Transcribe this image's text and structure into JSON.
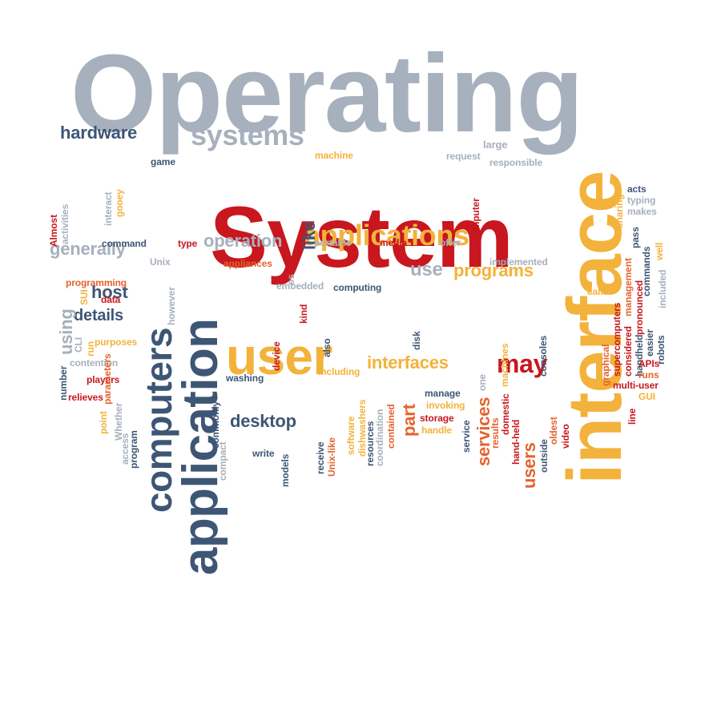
{
  "palette": {
    "gray": "#a7b0bd",
    "navy": "#3e5675",
    "yellow": "#f3b23b",
    "orange": "#e5622e",
    "red": "#c8171e"
  },
  "words": [
    {
      "text": "Operating",
      "color": "gray"
    },
    {
      "text": "System",
      "color": "red"
    },
    {
      "text": "interface",
      "color": "yellow"
    },
    {
      "text": "application",
      "color": "navy"
    },
    {
      "text": "user",
      "color": "yellow"
    },
    {
      "text": "computers",
      "color": "navy"
    },
    {
      "text": "applications",
      "color": "yellow"
    },
    {
      "text": "systems",
      "color": "gray"
    },
    {
      "text": "hardware",
      "color": "navy"
    },
    {
      "text": "may",
      "color": "red"
    },
    {
      "text": "interfaces",
      "color": "yellow"
    },
    {
      "text": "operation",
      "color": "gray"
    },
    {
      "text": "programs",
      "color": "yellow"
    },
    {
      "text": "desktop",
      "color": "navy"
    },
    {
      "text": "generally",
      "color": "gray"
    },
    {
      "text": "services",
      "color": "orange"
    },
    {
      "text": "users",
      "color": "orange"
    },
    {
      "text": "use",
      "color": "gray"
    },
    {
      "text": "like",
      "color": "navy"
    },
    {
      "text": "host",
      "color": "navy"
    },
    {
      "text": "details",
      "color": "navy"
    },
    {
      "text": "using",
      "color": "gray"
    },
    {
      "text": "part",
      "color": "orange"
    },
    {
      "text": "game",
      "color": "navy"
    },
    {
      "text": "machine",
      "color": "yellow"
    },
    {
      "text": "request",
      "color": "gray"
    },
    {
      "text": "large",
      "color": "gray"
    },
    {
      "text": "responsible",
      "color": "gray"
    },
    {
      "text": "acts",
      "color": "navy"
    },
    {
      "text": "typing",
      "color": "gray"
    },
    {
      "text": "makes",
      "color": "gray"
    },
    {
      "text": "sharing",
      "color": "yellow"
    },
    {
      "text": "pass",
      "color": "navy"
    },
    {
      "text": "well",
      "color": "yellow"
    },
    {
      "text": "commands",
      "color": "navy"
    },
    {
      "text": "included",
      "color": "gray"
    },
    {
      "text": "management",
      "color": "orange"
    },
    {
      "text": "pronounced",
      "color": "red"
    },
    {
      "text": "supercomputers",
      "color": "red"
    },
    {
      "text": "graphical",
      "color": "orange"
    },
    {
      "text": "considered",
      "color": "red"
    },
    {
      "text": "easier",
      "color": "navy"
    },
    {
      "text": "handheld",
      "color": "navy"
    },
    {
      "text": "robots",
      "color": "navy"
    },
    {
      "text": "calls",
      "color": "yellow"
    },
    {
      "text": "APIs",
      "color": "red"
    },
    {
      "text": "runs",
      "color": "orange"
    },
    {
      "text": "multi-user",
      "color": "red"
    },
    {
      "text": "GUI",
      "color": "yellow"
    },
    {
      "text": "line",
      "color": "red"
    },
    {
      "text": "interact",
      "color": "gray"
    },
    {
      "text": "gooey",
      "color": "yellow"
    },
    {
      "text": "Almost",
      "color": "red"
    },
    {
      "text": "activities",
      "color": "gray"
    },
    {
      "text": "command",
      "color": "navy"
    },
    {
      "text": "type",
      "color": "red"
    },
    {
      "text": "portable",
      "color": "gray"
    },
    {
      "text": "media",
      "color": "red"
    },
    {
      "text": "offer",
      "color": "gray"
    },
    {
      "text": "computer",
      "color": "red"
    },
    {
      "text": "implemented",
      "color": "gray"
    },
    {
      "text": "Unix",
      "color": "gray"
    },
    {
      "text": "appliances",
      "color": "orange"
    },
    {
      "text": "os",
      "color": "gray"
    },
    {
      "text": "embedded",
      "color": "gray"
    },
    {
      "text": "computing",
      "color": "navy"
    },
    {
      "text": "programming",
      "color": "orange"
    },
    {
      "text": "SUI",
      "color": "yellow"
    },
    {
      "text": "data",
      "color": "red"
    },
    {
      "text": "however",
      "color": "gray"
    },
    {
      "text": "CLI",
      "color": "gray"
    },
    {
      "text": "run",
      "color": "yellow"
    },
    {
      "text": "purposes",
      "color": "yellow"
    },
    {
      "text": "kind",
      "color": "red"
    },
    {
      "text": "device",
      "color": "red"
    },
    {
      "text": "also",
      "color": "navy"
    },
    {
      "text": "disk",
      "color": "navy"
    },
    {
      "text": "contention",
      "color": "gray"
    },
    {
      "text": "number",
      "color": "navy"
    },
    {
      "text": "players",
      "color": "red"
    },
    {
      "text": "relieves",
      "color": "red"
    },
    {
      "text": "parameters",
      "color": "orange"
    },
    {
      "text": "Whether",
      "color": "gray"
    },
    {
      "text": "point",
      "color": "yellow"
    },
    {
      "text": "access",
      "color": "gray"
    },
    {
      "text": "program",
      "color": "navy"
    },
    {
      "text": "compact",
      "color": "gray"
    },
    {
      "text": "commonly",
      "color": "navy"
    },
    {
      "text": "washing",
      "color": "navy"
    },
    {
      "text": "write",
      "color": "navy"
    },
    {
      "text": "models",
      "color": "navy"
    },
    {
      "text": "receive",
      "color": "navy"
    },
    {
      "text": "Unix-like",
      "color": "orange"
    },
    {
      "text": "including",
      "color": "yellow"
    },
    {
      "text": "software",
      "color": "yellow"
    },
    {
      "text": "dishwashers",
      "color": "yellow"
    },
    {
      "text": "resources",
      "color": "navy"
    },
    {
      "text": "coordination",
      "color": "gray"
    },
    {
      "text": "contained",
      "color": "orange"
    },
    {
      "text": "manage",
      "color": "navy"
    },
    {
      "text": "invoking",
      "color": "yellow"
    },
    {
      "text": "storage",
      "color": "red"
    },
    {
      "text": "handle",
      "color": "yellow"
    },
    {
      "text": "service",
      "color": "navy"
    },
    {
      "text": "one",
      "color": "gray"
    },
    {
      "text": "results",
      "color": "orange"
    },
    {
      "text": "domestic",
      "color": "red"
    },
    {
      "text": "hand-held",
      "color": "red"
    },
    {
      "text": "machines",
      "color": "yellow"
    },
    {
      "text": "outside",
      "color": "navy"
    },
    {
      "text": "oldest",
      "color": "orange"
    },
    {
      "text": "video",
      "color": "red"
    },
    {
      "text": "consoles",
      "color": "navy"
    }
  ]
}
